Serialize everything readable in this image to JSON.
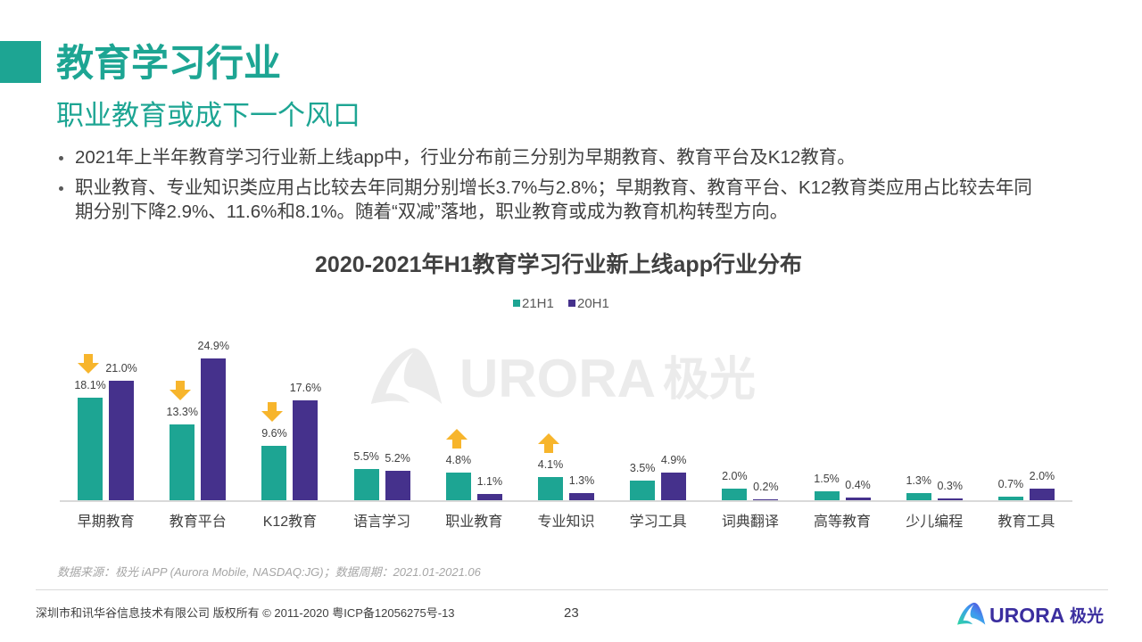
{
  "colors": {
    "accent": "#1DA593",
    "series_21h1": "#1DA593",
    "series_20h1": "#45318C",
    "trend_arrow": "#F7B52C",
    "watermark": "#EBEBEB",
    "brand": "#3B2E9F"
  },
  "header": {
    "title": "教育学习行业",
    "subtitle": "职业教育或成下一个风口"
  },
  "bullets": [
    {
      "lines": [
        "2021年上半年教育学习行业新上线app中，行业分布前三分别为早期教育、教育平台及K12教育。"
      ]
    },
    {
      "lines": [
        "职业教育、专业知识类应用占比较去年同期分别增长3.7%与2.8%；早期教育、教育平台、K12教育类应用占比较去年同",
        "期分别下降2.9%、11.6%和8.1%。随着“双减”落地，职业教育或成为教育机构转型方向。"
      ]
    }
  ],
  "chart_data": {
    "type": "bar",
    "title": "2020-2021年H1教育学习行业新上线app行业分布",
    "xlabel": "",
    "ylabel": "",
    "ylim": [
      0,
      25
    ],
    "grid": false,
    "legend_position": "top-center",
    "categories": [
      "早期教育",
      "教育平台",
      "K12教育",
      "语言学习",
      "职业教育",
      "专业知识",
      "学习工具",
      "词典翻译",
      "高等教育",
      "少儿编程",
      "教育工具"
    ],
    "series": [
      {
        "name": "21H1",
        "color": "#1DA593",
        "values": [
          18.1,
          13.3,
          9.6,
          5.5,
          4.8,
          4.1,
          3.5,
          2.0,
          1.5,
          1.3,
          0.7
        ],
        "labels": [
          "18.1%",
          "13.3%",
          "9.6%",
          "5.5%",
          "4.8%",
          "4.1%",
          "3.5%",
          "2.0%",
          "1.5%",
          "1.3%",
          "0.7%"
        ]
      },
      {
        "name": "20H1",
        "color": "#45318C",
        "values": [
          21.0,
          24.9,
          17.6,
          5.2,
          1.1,
          1.3,
          4.9,
          0.2,
          0.4,
          0.3,
          2.0
        ],
        "labels": [
          "21.0%",
          "24.9%",
          "17.6%",
          "5.2%",
          "1.1%",
          "1.3%",
          "4.9%",
          "0.2%",
          "0.4%",
          "0.3%",
          "2.0%"
        ]
      }
    ],
    "trend_icons": [
      "arrow-down-icon",
      "arrow-down-icon",
      "arrow-down-icon",
      null,
      "arrow-up-icon",
      "arrow-up-icon",
      null,
      null,
      null,
      null,
      null
    ]
  },
  "watermark": {
    "icon": "aurora-logo-icon",
    "brand_text": "URORA",
    "brand_cn": "极光"
  },
  "source_note": "数据来源：极光 iAPP (Aurora Mobile, NASDAQ:JG)；数据周期：2021.01-2021.06",
  "footer": {
    "copyright": "深圳市和讯华谷信息技术有限公司  版权所有 © 2011-2020 粤ICP备12056275号-13",
    "page_number": "23",
    "logo_icon": "aurora-logo-icon",
    "logo_text": "URORA",
    "logo_cn": "极光"
  }
}
